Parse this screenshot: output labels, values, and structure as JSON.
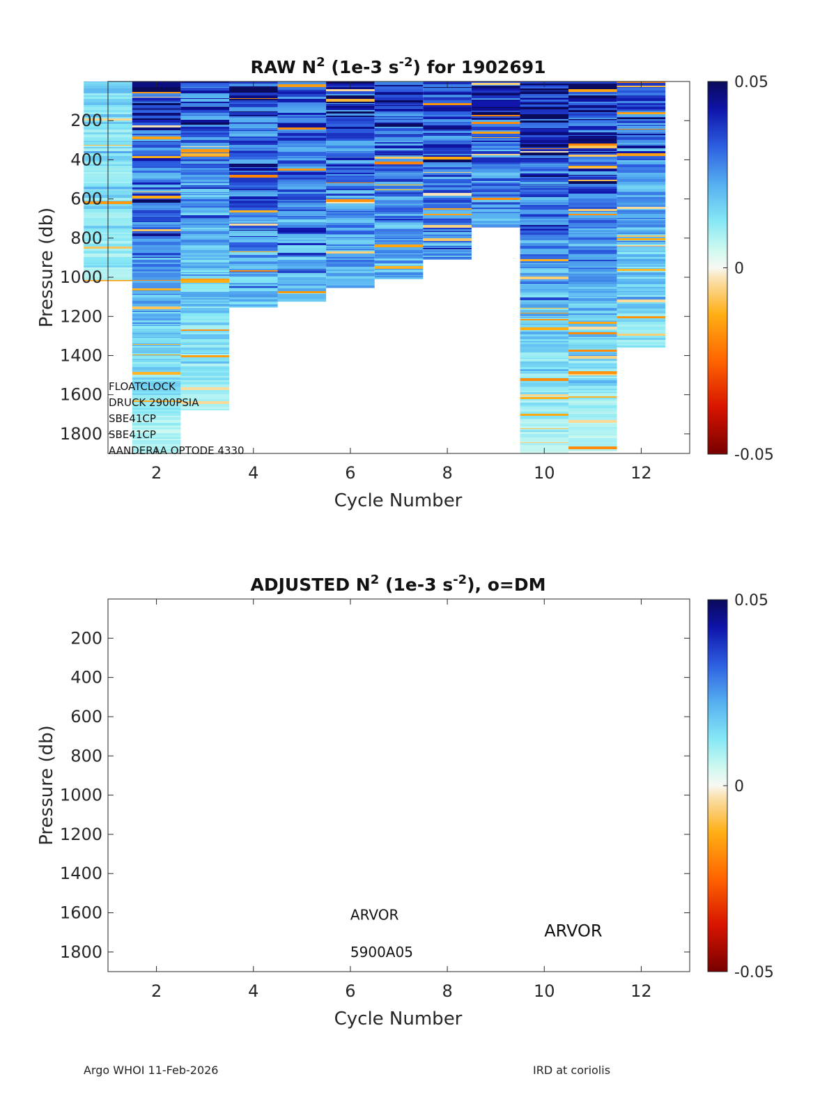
{
  "figure": {
    "footer_left": "Argo WHOI 11-Feb-2026",
    "footer_right": "IRD at coriolis"
  },
  "chart_data": [
    {
      "type": "heatmap",
      "title": "RAW N² (1e-3 s⁻²) for 1902691",
      "title_parts": {
        "a": "RAW N",
        "sup1": "2",
        "b": " (1e-3 s",
        "sup2": "-2",
        "c": ") for 1902691"
      },
      "xlabel": "Cycle Number",
      "ylabel": "Pressure (db)",
      "xlim": [
        1,
        13
      ],
      "ylim": [
        1900,
        0
      ],
      "xticks": [
        2,
        4,
        6,
        8,
        10,
        12
      ],
      "yticks": [
        200,
        400,
        600,
        800,
        1000,
        1200,
        1400,
        1600,
        1800
      ],
      "colorbar": {
        "min": -0.05,
        "max": 0.05,
        "ticks": [
          "0.05",
          "0",
          "-0.05"
        ]
      },
      "columns": [
        {
          "cycle": 1,
          "pmin": 0,
          "pmax": 1020,
          "top_strength": 0.35
        },
        {
          "cycle": 2,
          "pmin": 0,
          "pmax": 1900,
          "top_strength": 0.9
        },
        {
          "cycle": 3,
          "pmin": 0,
          "pmax": 1680,
          "top_strength": 0.75
        },
        {
          "cycle": 4,
          "pmin": 0,
          "pmax": 1155,
          "top_strength": 0.85
        },
        {
          "cycle": 5,
          "pmin": 0,
          "pmax": 1125,
          "top_strength": 0.8
        },
        {
          "cycle": 6,
          "pmin": 0,
          "pmax": 1055,
          "top_strength": 0.85
        },
        {
          "cycle": 7,
          "pmin": 0,
          "pmax": 1010,
          "top_strength": 0.8
        },
        {
          "cycle": 8,
          "pmin": 0,
          "pmax": 910,
          "top_strength": 0.85
        },
        {
          "cycle": 9,
          "pmin": 0,
          "pmax": 745,
          "top_strength": 0.8
        },
        {
          "cycle": 10,
          "pmin": 0,
          "pmax": 1900,
          "top_strength": 0.9
        },
        {
          "cycle": 11,
          "pmin": 0,
          "pmax": 1890,
          "top_strength": 0.9
        },
        {
          "cycle": 12,
          "pmin": 0,
          "pmax": 1360,
          "top_strength": 0.7
        }
      ],
      "annotations": [
        "FLOATCLOCK",
        "DRUCK 2900PSIA",
        "SBE41CP",
        "SBE41CP",
        "AANDERAA OPTODE 4330"
      ]
    },
    {
      "type": "heatmap",
      "title": "ADJUSTED N² (1e-3 s⁻²), o=DM",
      "title_parts": {
        "a": "ADJUSTED N",
        "sup1": "2",
        "b": " (1e-3 s",
        "sup2": "-2",
        "c": "), o=DM"
      },
      "xlabel": "Cycle Number",
      "ylabel": "Pressure (db)",
      "xlim": [
        1,
        13
      ],
      "ylim": [
        1900,
        0
      ],
      "xticks": [
        2,
        4,
        6,
        8,
        10,
        12
      ],
      "yticks": [
        200,
        400,
        600,
        800,
        1000,
        1200,
        1400,
        1600,
        1800
      ],
      "colorbar": {
        "min": -0.05,
        "max": 0.05,
        "ticks": [
          "0.05",
          "0",
          "-0.05"
        ]
      },
      "columns": [],
      "annotations": [
        {
          "text": "ARVOR",
          "x": 6,
          "y": 1635,
          "size": "small"
        },
        {
          "text": "5900A05",
          "x": 6,
          "y": 1825,
          "size": "small"
        },
        {
          "text": "ARVOR",
          "x": 10,
          "y": 1720,
          "size": "large"
        }
      ]
    }
  ]
}
